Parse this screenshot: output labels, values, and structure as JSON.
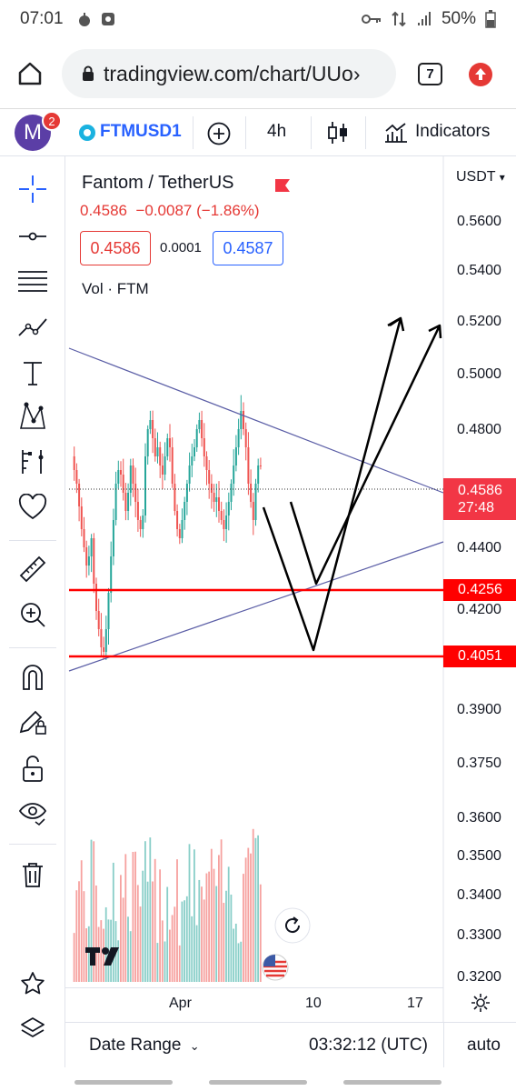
{
  "status": {
    "time": "07:01",
    "battery": "50%"
  },
  "browser": {
    "url": "tradingview.com/chart/UUo›",
    "tabs_count": "7"
  },
  "toolbar": {
    "avatar_letter": "M",
    "notification_count": "2",
    "symbol": "FTMUSD1",
    "interval": "4h",
    "indicators_label": "Indicators"
  },
  "legend": {
    "title": "Fantom / TetherUS",
    "price": "0.4586",
    "change": "−0.0087",
    "change_pct": "(−1.86%)",
    "bid": "0.4586",
    "spread": "0.0001",
    "ask": "0.4587",
    "volume_label": "Vol · FTM"
  },
  "price_axis": {
    "currency": "USDT",
    "ticks": [
      "0.5600",
      "0.5400",
      "0.5200",
      "0.5000",
      "0.4800",
      "0.4400",
      "0.4200",
      "0.3900",
      "0.3750",
      "0.3600",
      "0.3500",
      "0.3400",
      "0.3300",
      "0.3200"
    ],
    "current_price": "0.4586",
    "countdown": "27:48",
    "level_1": "0.4256",
    "level_2": "0.4051"
  },
  "time_axis": {
    "labels": [
      "Apr",
      "10",
      "17"
    ]
  },
  "bottom": {
    "date_range": "Date Range",
    "clock": "03:32:12 (UTC)",
    "scale": "auto"
  },
  "colors": {
    "up": "#26a69a",
    "down": "#ef5350",
    "level": "#ff0000",
    "trend": "#5b5ea6",
    "accent": "#2962ff"
  }
}
